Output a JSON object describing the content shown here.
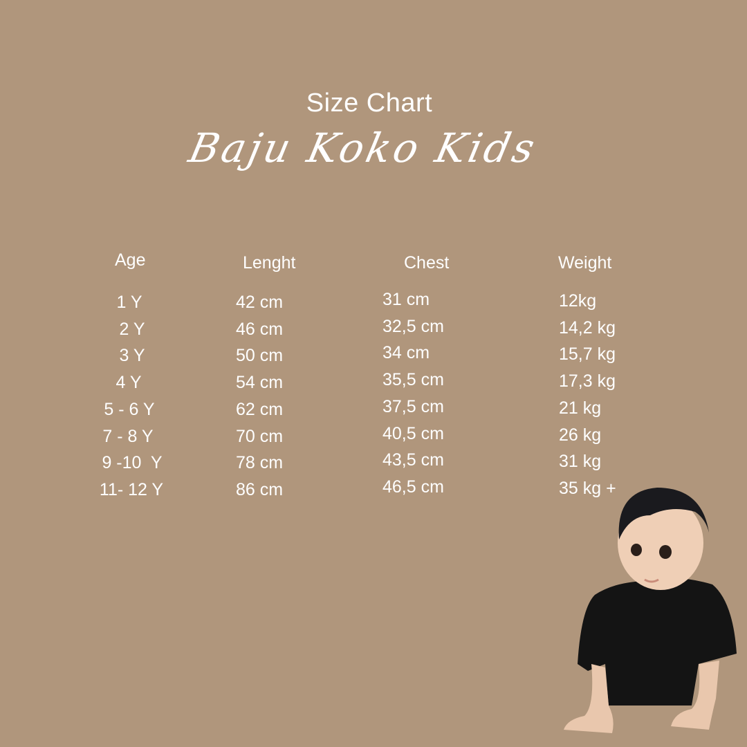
{
  "title": "Size Chart",
  "subtitle": "Baju Koko Kids",
  "table": {
    "headers": [
      "Age",
      "Lenght",
      "Chest",
      "Weight"
    ],
    "rows": [
      [
        "1 Y",
        "42 cm",
        "31 cm",
        "12kg"
      ],
      [
        "2 Y",
        "46 cm",
        "32,5 cm",
        "14,2 kg"
      ],
      [
        "3 Y",
        "50 cm",
        "34 cm",
        "15,7 kg"
      ],
      [
        "4 Y",
        "54 cm",
        "35,5 cm",
        "17,3 kg"
      ],
      [
        "5 - 6 Y",
        "62 cm",
        "37,5 cm",
        "21 kg"
      ],
      [
        "7 - 8 Y",
        "70 cm",
        "40,5 cm",
        "26 kg"
      ],
      [
        "9 -10  Y",
        "78 cm",
        "43,5 cm",
        "31 kg"
      ],
      [
        "11- 12 Y",
        "86 cm",
        "46,5 cm",
        "35 kg +"
      ]
    ]
  },
  "colors": {
    "background": "#b0967c",
    "text": "#ffffff"
  }
}
